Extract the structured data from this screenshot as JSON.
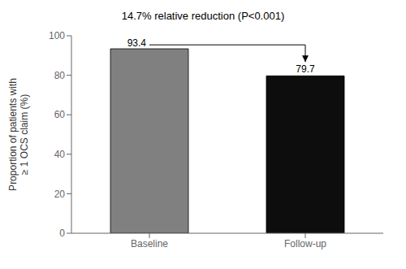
{
  "chart_data": {
    "type": "bar",
    "title": "14.7% relative reduction (P<0.001)",
    "categories": [
      "Baseline",
      "Follow-up"
    ],
    "values": [
      93.4,
      79.7
    ],
    "colors": [
      "#808080",
      "#0d0d0d"
    ],
    "ylabel": "Proportion of patients with\n≥ 1 OCS claim (%)",
    "ylim": [
      0,
      100
    ],
    "yticks": [
      0,
      20,
      40,
      60,
      80,
      100
    ],
    "grid": false,
    "data_labels": true
  }
}
